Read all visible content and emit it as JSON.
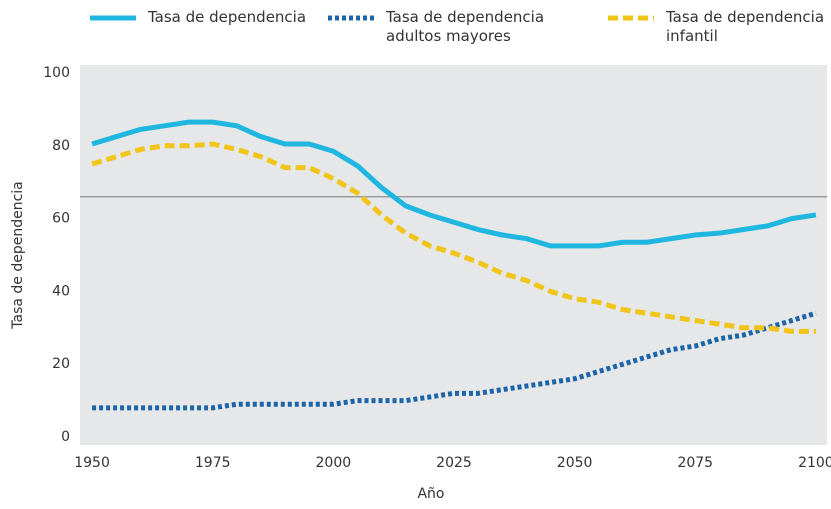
{
  "chart_data": {
    "type": "line",
    "x_label": "Año",
    "y_label": "Tasa de dependencia",
    "x": [
      1950,
      1955,
      1960,
      1965,
      1970,
      1975,
      1980,
      1985,
      1990,
      1995,
      2000,
      2005,
      2010,
      2015,
      2020,
      2025,
      2030,
      2035,
      2040,
      2045,
      2050,
      2055,
      2060,
      2065,
      2070,
      2075,
      2080,
      2085,
      2090,
      2095,
      2100
    ],
    "series": [
      {
        "name": "Tasa de dependencia",
        "color": "#1fb7e0",
        "style": "solid",
        "values": [
          80.5,
          82.5,
          84.5,
          85.5,
          86.5,
          86.5,
          85.5,
          82.5,
          80.5,
          80.5,
          78.5,
          74.5,
          68.5,
          63.5,
          61,
          59,
          57,
          55.5,
          54.5,
          52.5,
          52.5,
          52.5,
          53.5,
          53.5,
          54.5,
          55.5,
          56,
          57,
          58,
          60,
          61
        ]
      },
      {
        "name": "Tasa de dependencia adultos mayores",
        "color": "#1b64a8",
        "style": "dotted",
        "values": [
          8,
          8,
          8,
          8,
          8,
          8,
          9,
          9,
          9,
          9,
          9,
          10,
          10,
          10,
          11,
          12,
          12,
          13,
          14,
          15,
          16,
          18,
          20,
          22,
          24,
          25,
          27,
          28,
          30,
          32,
          34
        ]
      },
      {
        "name": "Tasa de dependencia infantil",
        "color": "#f0c419",
        "style": "dashed",
        "values": [
          75,
          77,
          79,
          80,
          80,
          80.5,
          79,
          77,
          74,
          74,
          71,
          67,
          61,
          56,
          52.5,
          50.5,
          48,
          45,
          43,
          40,
          38,
          37,
          35,
          34,
          33,
          32,
          31,
          30,
          30,
          29,
          29
        ]
      }
    ],
    "xlim": [
      1947.5,
      2102.3
    ],
    "xticks": [
      1950,
      1975,
      2000,
      2025,
      2050,
      2075,
      2100
    ],
    "ylim": [
      -2.2,
      102.2
    ],
    "yticks": [
      0,
      20,
      40,
      60,
      80,
      100
    ],
    "reference_line": 66,
    "reference_color": "#8a8c8e",
    "plot_background": "#e6e7e8"
  }
}
